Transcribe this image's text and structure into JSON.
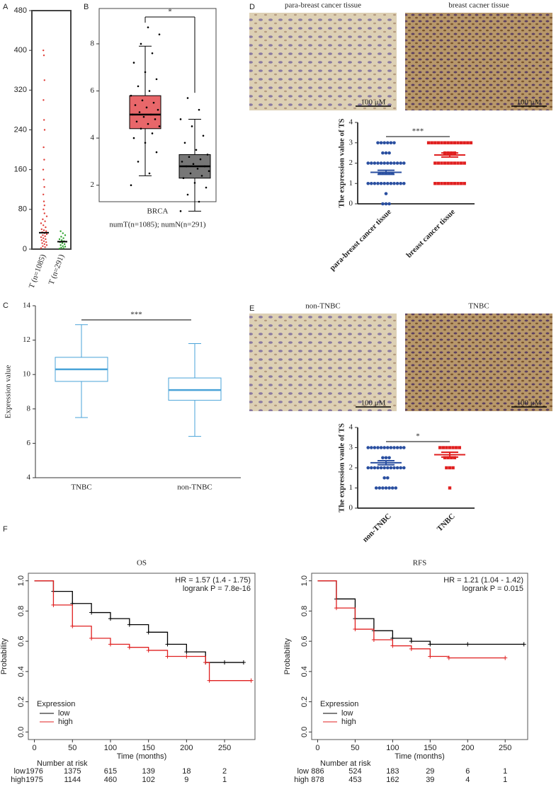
{
  "panels": [
    "A",
    "B",
    "C",
    "D",
    "E",
    "F"
  ],
  "images": {
    "d_labels": [
      "para-breast cancer tissue",
      "breast cacner tissue"
    ],
    "e_labels": [
      "non-TNBC",
      "TNBC"
    ],
    "scale_bar": "100 μM"
  },
  "chart_data": [
    {
      "type": "strip",
      "categories": [
        "T (n=1085)",
        "T (n=291)"
      ],
      "ylim": [
        0,
        480
      ],
      "yticks": [
        0,
        80,
        160,
        240,
        320,
        400,
        480
      ],
      "groups": [
        {
          "color": "#e0403a",
          "median": 33,
          "points": [
            2,
            4,
            6,
            8,
            10,
            12,
            14,
            16,
            18,
            20,
            22,
            24,
            26,
            28,
            30,
            32,
            34,
            36,
            38,
            40,
            44,
            48,
            52,
            56,
            60,
            66,
            72,
            80,
            88,
            96,
            110,
            125,
            140,
            160,
            180,
            205,
            240,
            260,
            300,
            340,
            390,
            400
          ]
        },
        {
          "color": "#2aa02a",
          "median": 15,
          "points": [
            1,
            2,
            3,
            5,
            6,
            8,
            10,
            12,
            14,
            16,
            18,
            20,
            22,
            25,
            28,
            32,
            36
          ]
        }
      ]
    },
    {
      "type": "box",
      "xlabel": "BRCA",
      "subtitle": "numT(n=1085); numN(n=291)",
      "significance": "*",
      "ylim": [
        1.3,
        9.5
      ],
      "yticks": [
        2,
        4,
        6,
        8
      ],
      "boxes": [
        {
          "color": "#e8676a",
          "min": 2.4,
          "q1": 4.4,
          "median": 5.0,
          "q3": 5.8,
          "max": 7.9,
          "points": [
            2.0,
            2.5,
            3.0,
            3.4,
            3.8,
            4.0,
            4.2,
            4.4,
            4.5,
            4.6,
            4.7,
            4.8,
            4.9,
            5.0,
            5.0,
            5.1,
            5.2,
            5.3,
            5.4,
            5.5,
            5.6,
            5.8,
            6.0,
            6.2,
            6.5,
            6.8,
            7.2,
            7.6,
            8.0,
            8.4,
            8.7
          ]
        },
        {
          "color": "#777777",
          "min": 0.9,
          "q1": 2.3,
          "median": 2.8,
          "q3": 3.3,
          "max": 4.8,
          "points": [
            0.9,
            1.3,
            1.6,
            1.9,
            2.1,
            2.3,
            2.4,
            2.5,
            2.6,
            2.7,
            2.8,
            2.8,
            2.9,
            3.0,
            3.1,
            3.2,
            3.3,
            3.5,
            3.8,
            4.1,
            4.5,
            4.8,
            5.2,
            5.7
          ]
        }
      ]
    },
    {
      "type": "box",
      "categories": [
        "TNBC",
        "non-TNBC"
      ],
      "ylabel": "Expression value",
      "significance": "***",
      "ylim": [
        4,
        14
      ],
      "yticks": [
        4,
        6,
        8,
        10,
        12,
        14
      ],
      "boxes": [
        {
          "color": "#4aa3d8",
          "min": 7.5,
          "q1": 9.6,
          "median": 10.3,
          "q3": 11.0,
          "max": 12.9
        },
        {
          "color": "#4aa3d8",
          "min": 6.4,
          "q1": 8.5,
          "median": 9.1,
          "q3": 9.8,
          "max": 11.8
        }
      ]
    },
    {
      "type": "mean-sem",
      "categories": [
        "para-breast cancer tissue",
        "breast cancer tissue"
      ],
      "ylabel": "The expression value of TS",
      "significance": "***",
      "ylim": [
        0,
        4
      ],
      "yticks": [
        0,
        1,
        2,
        3,
        4
      ],
      "groups": [
        {
          "color": "#2a4fa0",
          "mean": 1.55,
          "sem": 0.1,
          "points": [
            3,
            3,
            3,
            3,
            3,
            3,
            2.5,
            2.5,
            2.5,
            2,
            2,
            2,
            2,
            2,
            2,
            2,
            2,
            2,
            2,
            2,
            2,
            1.5,
            1.5,
            1.5,
            1.5,
            1.5,
            1,
            1,
            1,
            1,
            1,
            1,
            1,
            1,
            1,
            1,
            1,
            1,
            0.5,
            0,
            0,
            0
          ]
        },
        {
          "color": "#e02020",
          "mean": 2.4,
          "sem": 0.1,
          "points": [
            3,
            3,
            3,
            3,
            3,
            3,
            3,
            3,
            3,
            3,
            3,
            3,
            3,
            3,
            2.5,
            2.5,
            2.5,
            2.5,
            2,
            2,
            2,
            2,
            2,
            2,
            2,
            2,
            2,
            2,
            1,
            1,
            1,
            1,
            1,
            1,
            1,
            1,
            1,
            1
          ]
        }
      ]
    },
    {
      "type": "mean-sem",
      "categories": [
        "non-TNBC",
        "TNBC"
      ],
      "ylabel": "The expression vaule of TS",
      "significance": "*",
      "ylim": [
        0,
        4
      ],
      "yticks": [
        0,
        1,
        2,
        3,
        4
      ],
      "groups": [
        {
          "color": "#2a4fa0",
          "mean": 2.25,
          "sem": 0.1,
          "points": [
            3,
            3,
            3,
            3,
            3,
            3,
            3,
            3,
            3,
            3,
            3,
            3,
            2.5,
            2.5,
            2.5,
            2,
            2,
            2,
            2,
            2,
            2,
            2,
            2,
            2,
            2,
            2,
            2,
            1.5,
            1.5,
            1,
            1,
            1,
            1,
            1,
            1,
            1
          ]
        },
        {
          "color": "#e02020",
          "mean": 2.65,
          "sem": 0.12,
          "points": [
            3,
            3,
            3,
            3,
            3,
            3,
            3,
            2.5,
            2.5,
            2.5,
            2.5,
            2,
            2,
            2,
            1
          ]
        }
      ]
    },
    {
      "type": "km",
      "title": "OS",
      "hr": "HR = 1.57 (1.4 - 1.75)",
      "logrank": "logrank P = 7.8e-16",
      "xlabel": "Time (months)",
      "ylabel": "Probability",
      "legend_title": "Expression",
      "risk_title": "Number at risk",
      "xlim": [
        -8,
        290
      ],
      "xticks": [
        0,
        50,
        100,
        150,
        200,
        250
      ],
      "ylim": [
        -0.05,
        1.05
      ],
      "yticks": [
        {
          "value": 0,
          "label": "0.0"
        },
        {
          "value": 0.2,
          "label": "0.2"
        },
        {
          "value": 0.4,
          "label": "0.4"
        },
        {
          "value": 0.6,
          "label": "0.6"
        },
        {
          "value": 0.8,
          "label": "0.8"
        },
        {
          "value": 1,
          "label": "1.0"
        }
      ],
      "series": [
        {
          "name": "low",
          "color": "#000000",
          "x": [
            0,
            25,
            50,
            75,
            100,
            125,
            150,
            175,
            200,
            225,
            250,
            275
          ],
          "values": [
            1,
            0.93,
            0.85,
            0.79,
            0.75,
            0.71,
            0.66,
            0.58,
            0.53,
            0.46,
            0.46,
            0.46
          ],
          "risk": [
            1976,
            1375,
            615,
            139,
            18,
            2
          ]
        },
        {
          "name": "high",
          "color": "#e02020",
          "x": [
            0,
            25,
            50,
            75,
            100,
            125,
            150,
            175,
            200,
            225,
            230,
            285
          ],
          "values": [
            1,
            0.84,
            0.7,
            0.62,
            0.58,
            0.56,
            0.54,
            0.5,
            0.5,
            0.46,
            0.34,
            0.34
          ],
          "risk": [
            1975,
            1144,
            460,
            102,
            9,
            1
          ]
        }
      ]
    },
    {
      "type": "km",
      "title": "RFS",
      "hr": "HR = 1.21 (1.04 - 1.42)",
      "logrank": "logrank P = 0.015",
      "xlabel": "Time (months)",
      "ylabel": "Probability",
      "legend_title": "Expression",
      "risk_title": "Number at risk",
      "xlim": [
        -8,
        280
      ],
      "xticks": [
        0,
        50,
        100,
        150,
        200,
        250
      ],
      "ylim": [
        -0.05,
        1.05
      ],
      "yticks": [
        {
          "value": 0,
          "label": "0.0"
        },
        {
          "value": 0.2,
          "label": "0.2"
        },
        {
          "value": 0.4,
          "label": "0.4"
        },
        {
          "value": 0.6,
          "label": "0.6"
        },
        {
          "value": 0.8,
          "label": "0.8"
        },
        {
          "value": 1,
          "label": "1.0"
        }
      ],
      "series": [
        {
          "name": "low",
          "color": "#000000",
          "x": [
            0,
            25,
            50,
            75,
            100,
            125,
            150,
            200,
            275
          ],
          "values": [
            1,
            0.88,
            0.75,
            0.67,
            0.62,
            0.6,
            0.58,
            0.58,
            0.58
          ],
          "risk": [
            886,
            524,
            183,
            29,
            6,
            1
          ]
        },
        {
          "name": "high",
          "color": "#e02020",
          "x": [
            0,
            25,
            50,
            75,
            100,
            125,
            150,
            175,
            250
          ],
          "values": [
            1,
            0.82,
            0.68,
            0.61,
            0.57,
            0.55,
            0.5,
            0.49,
            0.49
          ],
          "risk": [
            878,
            453,
            162,
            39,
            4,
            1
          ]
        }
      ]
    }
  ]
}
